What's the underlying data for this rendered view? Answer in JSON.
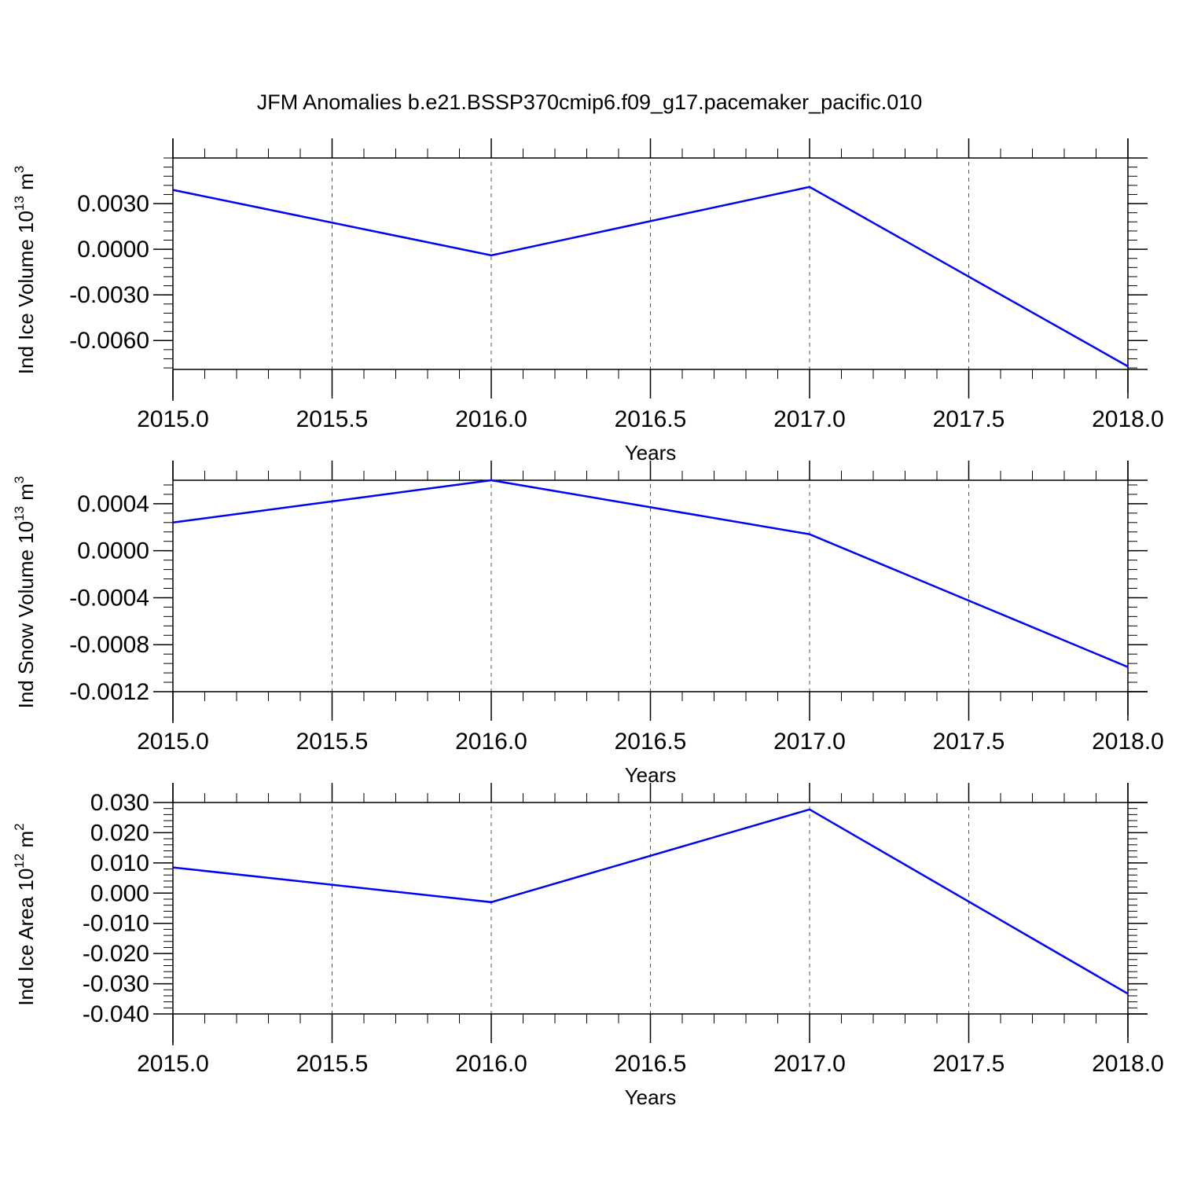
{
  "title": "JFM Anomalies b.e21.BSSP370cmip6.f09_g17.pacemaker_pacific.010",
  "colors": {
    "series": "#0000ff",
    "axis": "#000000",
    "grid": "#555555"
  },
  "chart_data": [
    {
      "type": "line",
      "ylabel_main": "Ind Ice Volume 10",
      "ylabel_exp": "13",
      "ylabel_unit": " m",
      "ylabel_unit_exp": "3",
      "xlabel": "Years",
      "x": [
        2015,
        2016,
        2017,
        2018
      ],
      "values": [
        0.0039,
        -0.0004,
        0.0041,
        -0.0077
      ],
      "xlim": [
        2015,
        2018
      ],
      "ylim": [
        -0.0079,
        0.006
      ],
      "yticks": [
        0.003,
        0.0,
        -0.003,
        -0.006
      ],
      "ytick_labels": [
        "0.0030",
        "0.0000",
        "-0.0030",
        "-0.0060"
      ],
      "xticks": [
        2015,
        2015.5,
        2016,
        2016.5,
        2017,
        2017.5,
        2018
      ],
      "xtick_labels": [
        "2015.0",
        "2015.5",
        "2016.0",
        "2016.5",
        "2017.0",
        "2017.5",
        "2018.0"
      ],
      "grid": "vertical-dashed"
    },
    {
      "type": "line",
      "ylabel_main": "Ind Snow Volume 10",
      "ylabel_exp": "13",
      "ylabel_unit": " m",
      "ylabel_unit_exp": "3",
      "xlabel": "Years",
      "x": [
        2015,
        2016,
        2017,
        2018
      ],
      "values": [
        0.00024,
        0.0006,
        0.00014,
        -0.00099
      ],
      "xlim": [
        2015,
        2018
      ],
      "ylim": [
        -0.0012,
        0.0006
      ],
      "yticks": [
        0.0004,
        0.0,
        -0.0004,
        -0.0008,
        -0.0012
      ],
      "ytick_labels": [
        "0.0004",
        "0.0000",
        "-0.0004",
        "-0.0008",
        "-0.0012"
      ],
      "xticks": [
        2015,
        2015.5,
        2016,
        2016.5,
        2017,
        2017.5,
        2018
      ],
      "xtick_labels": [
        "2015.0",
        "2015.5",
        "2016.0",
        "2016.5",
        "2017.0",
        "2017.5",
        "2018.0"
      ],
      "grid": "vertical-dashed"
    },
    {
      "type": "line",
      "ylabel_main": "Ind Ice Area 10",
      "ylabel_exp": "12",
      "ylabel_unit": " m",
      "ylabel_unit_exp": "2",
      "xlabel": "Years",
      "x": [
        2015,
        2016,
        2017,
        2018
      ],
      "values": [
        0.0085,
        -0.003,
        0.0277,
        -0.0333
      ],
      "xlim": [
        2015,
        2018
      ],
      "ylim": [
        -0.04,
        0.03
      ],
      "yticks": [
        0.03,
        0.02,
        0.01,
        0.0,
        -0.01,
        -0.02,
        -0.03,
        -0.04
      ],
      "ytick_labels": [
        "0.030",
        "0.020",
        "0.010",
        "0.000",
        "-0.010",
        "-0.020",
        "-0.030",
        "-0.040"
      ],
      "xticks": [
        2015,
        2015.5,
        2016,
        2016.5,
        2017,
        2017.5,
        2018
      ],
      "xtick_labels": [
        "2015.0",
        "2015.5",
        "2016.0",
        "2016.5",
        "2017.0",
        "2017.5",
        "2018.0"
      ],
      "grid": "vertical-dashed"
    }
  ]
}
